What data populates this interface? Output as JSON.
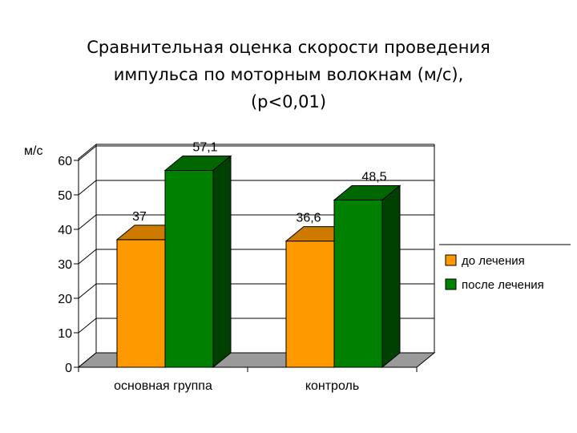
{
  "title_lines": [
    "Сравнительная оценка скорости проведения",
    "импульса по моторным волокнам (м/с),",
    "(p<0,01)"
  ],
  "chart_data": {
    "type": "bar",
    "title": "Сравнительная оценка скорости проведения импульса по моторным волокнам (м/с), (p<0,01)",
    "ylabel": "м/с",
    "xlabel": "",
    "categories": [
      "основная группа",
      "контроль"
    ],
    "series": [
      {
        "name": "до лечения",
        "values": [
          37,
          36.6
        ],
        "labels": [
          "37",
          "36,6"
        ],
        "color": "#ff9900"
      },
      {
        "name": "после лечения",
        "values": [
          57.1,
          48.5
        ],
        "labels": [
          "57,1",
          "48,5"
        ],
        "color": "#008000"
      }
    ],
    "ylim": [
      0,
      60
    ],
    "yticks": [
      0,
      10,
      20,
      30,
      40,
      50,
      60
    ],
    "grid": true,
    "legend": "right",
    "style": "3d"
  }
}
